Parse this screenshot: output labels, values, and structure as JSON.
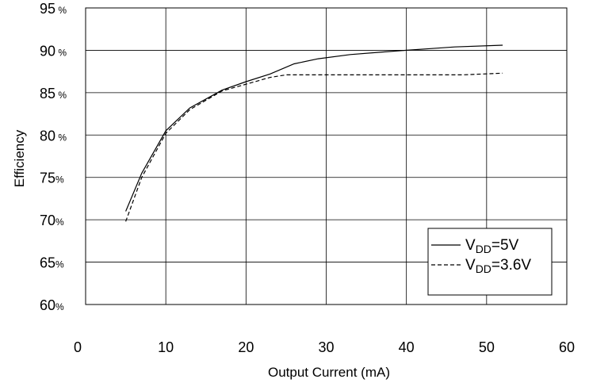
{
  "chart_data": {
    "type": "line",
    "xlabel": "Output Current (mA)",
    "ylabel": "Efficiency",
    "xlim": [
      0,
      60
    ],
    "ylim": [
      60,
      95
    ],
    "grid": true,
    "x_ticks": [
      "0",
      "10",
      "20",
      "30",
      "40",
      "50",
      "60"
    ],
    "y_ticks": [
      {
        "num": "95",
        "suffix": " %"
      },
      {
        "num": "90",
        "suffix": " %"
      },
      {
        "num": "85",
        "suffix": " %"
      },
      {
        "num": "80",
        "suffix": " %"
      },
      {
        "num": "75",
        "suffix": "%"
      },
      {
        "num": "70",
        "suffix": "%"
      },
      {
        "num": "65",
        "suffix": "%"
      },
      {
        "num": "60",
        "suffix": "%"
      }
    ],
    "legend_position": "bottom-right",
    "series": [
      {
        "name": "VDD=5V",
        "legend_main": "V",
        "legend_sub": "DD",
        "legend_rest": "=5V",
        "style": "solid",
        "color": "#000000",
        "points": [
          [
            5,
            71.0
          ],
          [
            7,
            75.5
          ],
          [
            10,
            80.5
          ],
          [
            13,
            83.2
          ],
          [
            17,
            85.3
          ],
          [
            20,
            86.3
          ],
          [
            23,
            87.2
          ],
          [
            26,
            88.4
          ],
          [
            29,
            89.0
          ],
          [
            33,
            89.5
          ],
          [
            37,
            89.8
          ],
          [
            40,
            90.0
          ],
          [
            43,
            90.2
          ],
          [
            46,
            90.4
          ],
          [
            52,
            90.6
          ]
        ]
      },
      {
        "name": "VDD=3.6V",
        "legend_main": "V",
        "legend_sub": "DD",
        "legend_rest": "=3.6V",
        "style": "dashed",
        "color": "#000000",
        "points": [
          [
            5,
            69.8
          ],
          [
            7,
            75.0
          ],
          [
            10,
            80.2
          ],
          [
            13,
            83.0
          ],
          [
            17,
            85.2
          ],
          [
            20,
            86.0
          ],
          [
            23,
            86.8
          ],
          [
            25,
            87.1
          ],
          [
            30,
            87.1
          ],
          [
            40,
            87.1
          ],
          [
            47,
            87.1
          ],
          [
            52,
            87.3
          ]
        ]
      }
    ]
  }
}
